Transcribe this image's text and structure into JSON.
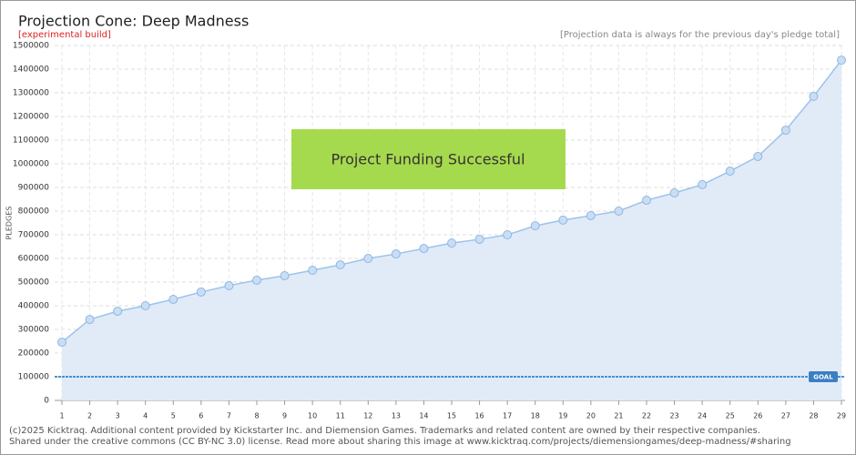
{
  "chart_data": {
    "type": "area",
    "title": "Projection Cone: Deep Madness",
    "subtitle": "[experimental build]",
    "note": "[Projection data is always for the previous day's pledge total]",
    "annotation": "Project Funding Successful",
    "y_label": "PLEDGES",
    "footer": [
      "(c)2025 Kicktraq. Additional content provided by Kickstarter Inc. and Diemension Games. Trademarks and related content are owned by their respective companies.",
      "Shared under the creative commons (CC BY-NC 3.0) license. Read more about sharing this image at www.kicktraq.com/projects/diemensiongames/deep-madness/#sharing"
    ],
    "categories": [
      "1",
      "2",
      "3",
      "4",
      "5",
      "6",
      "7",
      "8",
      "9",
      "10",
      "11",
      "12",
      "13",
      "14",
      "15",
      "16",
      "17",
      "18",
      "19",
      "20",
      "21",
      "22",
      "23",
      "24",
      "25",
      "26",
      "27",
      "28",
      "29"
    ],
    "series": [
      {
        "name": "Pledges",
        "color": "#9cc3ea",
        "values": [
          246000,
          342000,
          377000,
          400000,
          427000,
          458000,
          485000,
          508000,
          527000,
          550000,
          573000,
          600000,
          619000,
          642000,
          665000,
          681000,
          700000,
          738000,
          762000,
          781000,
          800000,
          846000,
          877000,
          912000,
          969000,
          1031000,
          1142000,
          1285000,
          1438000
        ]
      }
    ],
    "goal": {
      "value": 100000,
      "label": "GOAL"
    },
    "ylim": [
      0,
      1500000
    ],
    "yticks": [
      0,
      100000,
      200000,
      300000,
      400000,
      500000,
      600000,
      700000,
      800000,
      900000,
      1000000,
      1100000,
      1200000,
      1300000,
      1400000,
      1500000
    ],
    "grid": true
  }
}
